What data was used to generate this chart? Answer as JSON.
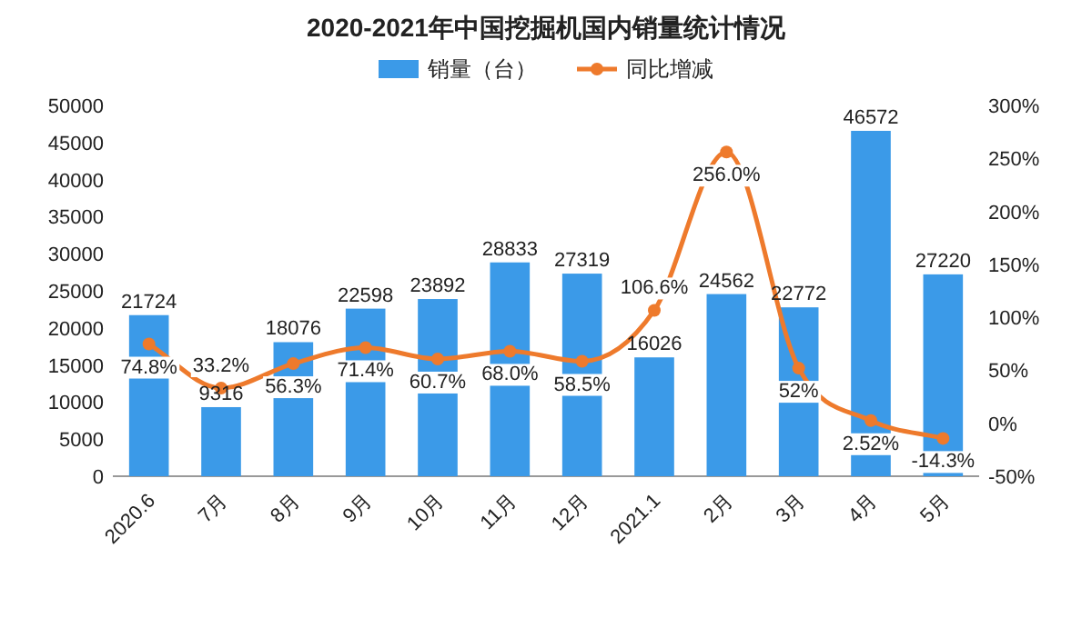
{
  "chart_data": {
    "type": "bar",
    "title": "2020-2021年中国挖掘机国内销量统计情况",
    "categories": [
      "2020.6",
      "7月",
      "8月",
      "9月",
      "10月",
      "11月",
      "12月",
      "2021.1",
      "2月",
      "3月",
      "4月",
      "5月"
    ],
    "series": [
      {
        "name": "销量（台）",
        "color": "#3b9ae8",
        "values": [
          21724,
          9316,
          18076,
          22598,
          23892,
          28833,
          27319,
          16026,
          24562,
          22772,
          46572,
          27220
        ]
      },
      {
        "name": "同比增减",
        "type": "line",
        "axis": "y2",
        "color": "#ee7a2c",
        "marker": "circle",
        "values": [
          74.8,
          33.2,
          56.3,
          71.4,
          60.7,
          68.0,
          58.5,
          106.6,
          256.0,
          52,
          2.52,
          -14.3
        ],
        "value_labels": [
          "74.8%",
          "33.2%",
          "56.3%",
          "71.4%",
          "60.7%",
          "68.0%",
          "58.5%",
          "106.6%",
          "256.0%",
          "52%",
          "2.52%",
          "-14.3%"
        ]
      }
    ],
    "data_labels": true,
    "ylim": [
      0,
      50000
    ],
    "yticks": [
      0,
      5000,
      10000,
      15000,
      20000,
      25000,
      30000,
      35000,
      40000,
      45000,
      50000
    ],
    "y2lim": [
      -50,
      300
    ],
    "y2ticks": [
      {
        "value": -50,
        "label": "-50%"
      },
      {
        "value": 0,
        "label": "0%"
      },
      {
        "value": 50,
        "label": "50%"
      },
      {
        "value": 100,
        "label": "100%"
      },
      {
        "value": 150,
        "label": "150%"
      },
      {
        "value": 200,
        "label": "200%"
      },
      {
        "value": 250,
        "label": "250%"
      },
      {
        "value": 300,
        "label": "300%"
      }
    ],
    "legend": "top",
    "grid": false
  }
}
